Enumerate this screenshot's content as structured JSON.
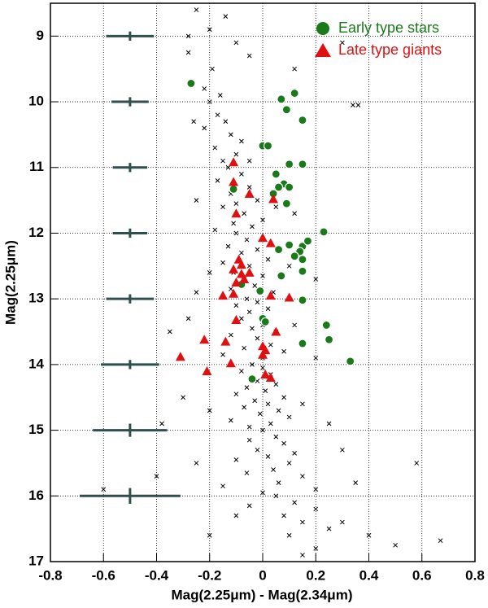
{
  "chart_data": {
    "type": "scatter",
    "xlabel": "Mag(2.25μm) - Mag(2.34μm)",
    "ylabel": "Mag(2.25μm)",
    "xlim": [
      -0.8,
      0.8
    ],
    "ylim": [
      8.5,
      17
    ],
    "y_inverted": true,
    "xticks": [
      -0.8,
      -0.6,
      -0.4,
      -0.2,
      0,
      0.2,
      0.4,
      0.6,
      0.8
    ],
    "yticks": [
      9,
      10,
      11,
      12,
      13,
      14,
      15,
      16,
      17
    ],
    "grid": true,
    "legend": "upper right",
    "background": {
      "color": "#000000",
      "points": [
        [
          -0.25,
          8.6
        ],
        [
          -0.14,
          8.7
        ],
        [
          -0.2,
          8.9
        ],
        [
          -0.28,
          9.0
        ],
        [
          -0.1,
          9.1
        ],
        [
          -0.28,
          9.25
        ],
        [
          -0.19,
          9.5
        ],
        [
          -0.05,
          9.3
        ],
        [
          -0.22,
          9.8
        ],
        [
          -0.16,
          9.9
        ],
        [
          0.3,
          9.1
        ],
        [
          0.12,
          9.5
        ],
        [
          -0.2,
          10.0
        ],
        [
          -0.17,
          10.2
        ],
        [
          -0.14,
          10.3
        ],
        [
          -0.22,
          10.4
        ],
        [
          -0.12,
          10.5
        ],
        [
          -0.08,
          10.6
        ],
        [
          -0.18,
          10.7
        ],
        [
          -0.1,
          10.8
        ],
        [
          -0.05,
          10.9
        ],
        [
          -0.15,
          10.9
        ],
        [
          0.34,
          10.05
        ],
        [
          0.36,
          10.05
        ],
        [
          -0.26,
          10.3
        ],
        [
          -0.13,
          11.0
        ],
        [
          -0.08,
          11.1
        ],
        [
          -0.17,
          11.2
        ],
        [
          -0.05,
          11.3
        ],
        [
          -0.12,
          11.4
        ],
        [
          -0.02,
          11.5
        ],
        [
          -0.1,
          11.55
        ],
        [
          -0.15,
          11.6
        ],
        [
          -0.07,
          11.7
        ],
        [
          0.0,
          11.8
        ],
        [
          -0.11,
          11.85
        ],
        [
          -0.04,
          11.9
        ],
        [
          -0.18,
          11.95
        ],
        [
          0.05,
          11.6
        ],
        [
          -0.25,
          11.5
        ],
        [
          0.12,
          11.7
        ],
        [
          -0.1,
          12.0
        ],
        [
          -0.06,
          12.1
        ],
        [
          -0.13,
          12.2
        ],
        [
          -0.02,
          12.25
        ],
        [
          -0.08,
          12.3
        ],
        [
          0.02,
          12.4
        ],
        [
          -0.15,
          12.45
        ],
        [
          -0.05,
          12.5
        ],
        [
          -0.11,
          12.6
        ],
        [
          0.0,
          12.65
        ],
        [
          -0.07,
          12.7
        ],
        [
          -0.03,
          12.8
        ],
        [
          -0.12,
          12.85
        ],
        [
          0.04,
          12.9
        ],
        [
          -0.2,
          12.6
        ],
        [
          0.1,
          12.5
        ],
        [
          -0.25,
          12.9
        ],
        [
          0.2,
          12.7
        ],
        [
          -0.06,
          13.0
        ],
        [
          -0.02,
          13.05
        ],
        [
          -0.1,
          13.1
        ],
        [
          0.02,
          13.15
        ],
        [
          -0.05,
          13.2
        ],
        [
          -0.08,
          13.3
        ],
        [
          0.0,
          13.4
        ],
        [
          -0.04,
          13.45
        ],
        [
          0.05,
          13.5
        ],
        [
          -0.12,
          13.55
        ],
        [
          -0.02,
          13.6
        ],
        [
          0.03,
          13.7
        ],
        [
          -0.07,
          13.75
        ],
        [
          0.08,
          13.8
        ],
        [
          -0.15,
          13.85
        ],
        [
          0.0,
          13.9
        ],
        [
          0.12,
          13.4
        ],
        [
          -0.28,
          13.3
        ],
        [
          0.2,
          13.9
        ],
        [
          -0.35,
          13.5
        ],
        [
          -0.04,
          14.0
        ],
        [
          0.0,
          14.05
        ],
        [
          -0.08,
          14.1
        ],
        [
          0.03,
          14.15
        ],
        [
          -0.02,
          14.25
        ],
        [
          0.05,
          14.3
        ],
        [
          -0.06,
          14.35
        ],
        [
          0.01,
          14.4
        ],
        [
          -0.1,
          14.45
        ],
        [
          0.08,
          14.5
        ],
        [
          -0.03,
          14.55
        ],
        [
          0.02,
          14.6
        ],
        [
          -0.07,
          14.65
        ],
        [
          0.06,
          14.7
        ],
        [
          -0.01,
          14.75
        ],
        [
          0.1,
          14.8
        ],
        [
          -0.12,
          14.85
        ],
        [
          0.03,
          14.9
        ],
        [
          -0.05,
          14.95
        ],
        [
          0.15,
          14.6
        ],
        [
          -0.2,
          14.7
        ],
        [
          0.25,
          14.9
        ],
        [
          -0.3,
          14.5
        ],
        [
          -0.38,
          14.9
        ],
        [
          0.0,
          15.0
        ],
        [
          0.05,
          15.1
        ],
        [
          -0.05,
          15.15
        ],
        [
          0.08,
          15.2
        ],
        [
          -0.02,
          15.3
        ],
        [
          0.12,
          15.35
        ],
        [
          0.02,
          15.4
        ],
        [
          -0.1,
          15.45
        ],
        [
          0.1,
          15.5
        ],
        [
          0.04,
          15.6
        ],
        [
          -0.06,
          15.65
        ],
        [
          0.15,
          15.7
        ],
        [
          0.06,
          15.8
        ],
        [
          -0.15,
          15.85
        ],
        [
          0.2,
          15.9
        ],
        [
          0.0,
          15.95
        ],
        [
          0.3,
          15.3
        ],
        [
          -0.25,
          15.5
        ],
        [
          0.35,
          15.8
        ],
        [
          -0.4,
          15.7
        ],
        [
          -0.6,
          15.9
        ],
        [
          0.58,
          15.5
        ],
        [
          0.05,
          16.0
        ],
        [
          0.12,
          16.1
        ],
        [
          -0.05,
          16.15
        ],
        [
          0.2,
          16.2
        ],
        [
          0.08,
          16.3
        ],
        [
          0.15,
          16.4
        ],
        [
          0.25,
          16.5
        ],
        [
          0.1,
          16.6
        ],
        [
          0.3,
          16.4
        ],
        [
          -0.1,
          16.3
        ],
        [
          0.4,
          16.6
        ],
        [
          0.2,
          16.8
        ],
        [
          0.5,
          16.75
        ],
        [
          -0.2,
          16.6
        ],
        [
          0.67,
          16.68
        ],
        [
          0.15,
          16.9
        ]
      ]
    },
    "series": [
      {
        "name": "Early type stars",
        "color": "#1a7a1a",
        "marker": "circle",
        "points": [
          [
            -0.27,
            9.72
          ],
          [
            0.12,
            9.87
          ],
          [
            0.07,
            9.96
          ],
          [
            0.09,
            10.12
          ],
          [
            0.15,
            10.28
          ],
          [
            0.0,
            10.67
          ],
          [
            0.02,
            10.67
          ],
          [
            0.15,
            10.95
          ],
          [
            0.1,
            10.95
          ],
          [
            0.05,
            11.1
          ],
          [
            0.08,
            11.25
          ],
          [
            0.06,
            11.3
          ],
          [
            0.04,
            11.4
          ],
          [
            0.1,
            11.3
          ],
          [
            -0.11,
            11.33
          ],
          [
            0.09,
            11.55
          ],
          [
            0.23,
            11.98
          ],
          [
            0.1,
            12.18
          ],
          [
            0.15,
            12.2
          ],
          [
            0.17,
            12.12
          ],
          [
            0.06,
            12.25
          ],
          [
            0.14,
            12.28
          ],
          [
            0.12,
            12.35
          ],
          [
            0.15,
            12.4
          ],
          [
            0.15,
            12.58
          ],
          [
            0.07,
            12.65
          ],
          [
            -0.08,
            12.78
          ],
          [
            -0.01,
            12.88
          ],
          [
            0.15,
            13.02
          ],
          [
            0.0,
            13.3
          ],
          [
            0.01,
            13.35
          ],
          [
            0.24,
            13.4
          ],
          [
            0.25,
            13.62
          ],
          [
            0.15,
            13.68
          ],
          [
            0.33,
            13.95
          ],
          [
            -0.04,
            14.22
          ]
        ]
      },
      {
        "name": "Late type giants",
        "color": "#e01010",
        "marker": "triangle",
        "points": [
          [
            -0.11,
            10.92
          ],
          [
            -0.11,
            11.22
          ],
          [
            -0.05,
            11.4
          ],
          [
            0.04,
            11.48
          ],
          [
            -0.1,
            11.7
          ],
          [
            0.0,
            12.07
          ],
          [
            0.03,
            12.15
          ],
          [
            -0.09,
            12.4
          ],
          [
            -0.08,
            12.48
          ],
          [
            -0.11,
            12.55
          ],
          [
            -0.08,
            12.62
          ],
          [
            -0.07,
            12.7
          ],
          [
            -0.1,
            12.75
          ],
          [
            -0.05,
            12.6
          ],
          [
            -0.15,
            12.95
          ],
          [
            -0.11,
            12.92
          ],
          [
            0.03,
            12.95
          ],
          [
            0.1,
            12.98
          ],
          [
            -0.1,
            13.32
          ],
          [
            0.05,
            13.5
          ],
          [
            -0.22,
            13.62
          ],
          [
            -0.14,
            13.65
          ],
          [
            0.0,
            13.72
          ],
          [
            0.01,
            13.78
          ],
          [
            0.0,
            13.85
          ],
          [
            -0.31,
            13.88
          ],
          [
            -0.12,
            13.98
          ],
          [
            -0.21,
            14.1
          ],
          [
            0.01,
            14.15
          ],
          [
            0.03,
            14.2
          ]
        ]
      }
    ],
    "error_bars": {
      "color": "#2f4f4f",
      "x": [
        -0.5,
        -0.5,
        -0.5,
        -0.5,
        -0.5,
        -0.5,
        -0.5,
        -0.5
      ],
      "y": [
        9,
        10,
        11,
        12,
        13,
        14,
        15,
        16
      ],
      "xerr": [
        0.09,
        0.07,
        0.065,
        0.065,
        0.09,
        0.11,
        0.14,
        0.19
      ],
      "yerr": [
        0.07,
        0.07,
        0.07,
        0.07,
        0.07,
        0.07,
        0.1,
        0.12
      ]
    }
  }
}
